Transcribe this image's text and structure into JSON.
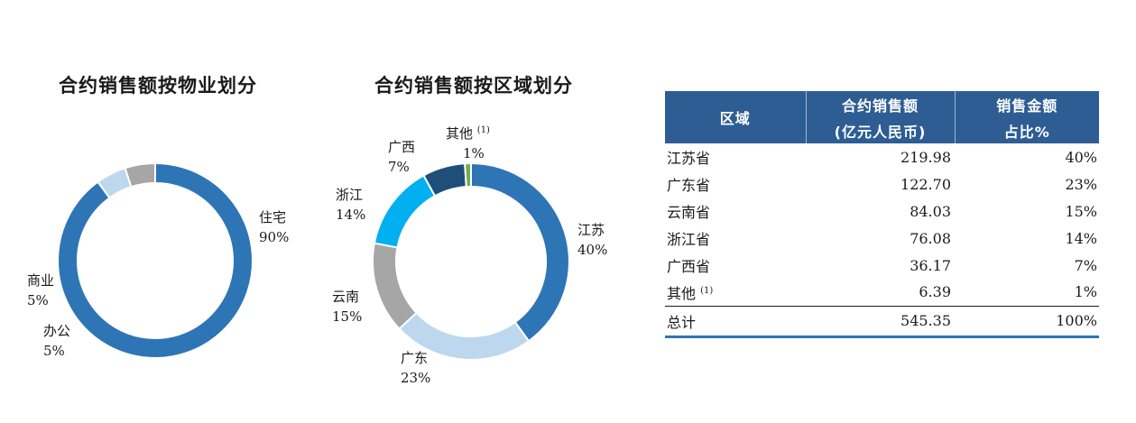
{
  "titles": {
    "property": "合约销售额按物业划分",
    "region": "合约销售额按区域划分"
  },
  "chart_data": [
    {
      "type": "pie",
      "title": "合约销售额按物业划分",
      "categories": [
        "住宅",
        "办公",
        "商业"
      ],
      "values": [
        90,
        5,
        5
      ],
      "labels": [
        "90%",
        "5%",
        "5%"
      ],
      "colors": [
        "#2e75b6",
        "#bdd7ee",
        "#a6a6a6"
      ]
    },
    {
      "type": "pie",
      "title": "合约销售额按区域划分",
      "categories": [
        "江苏",
        "广东",
        "云南",
        "浙江",
        "广西",
        "其他"
      ],
      "values": [
        40,
        23,
        15,
        14,
        7,
        1
      ],
      "labels": [
        "40%",
        "23%",
        "15%",
        "14%",
        "7%",
        "1%"
      ],
      "colors": [
        "#2e75b6",
        "#bdd7ee",
        "#a6a6a6",
        "#00b0f0",
        "#1f4e79",
        "#70ad47"
      ],
      "footnote_mark": "(1)"
    }
  ],
  "table": {
    "headers": {
      "region": "区域",
      "amount_line1": "合约销售额",
      "amount_line2": "(亿元人民币)",
      "share_line1": "销售金额",
      "share_line2": "占比%"
    },
    "rows": [
      {
        "region": "江苏省",
        "amount": "219.98",
        "share": "40%"
      },
      {
        "region": "广东省",
        "amount": "122.70",
        "share": "23%"
      },
      {
        "region": "云南省",
        "amount": "84.03",
        "share": "15%"
      },
      {
        "region": "浙江省",
        "amount": "76.08",
        "share": "14%"
      },
      {
        "region": "广西省",
        "amount": "36.17",
        "share": "7%"
      },
      {
        "region": "其他",
        "amount": "6.39",
        "share": "1%",
        "mark": "(1)"
      }
    ],
    "total": {
      "region": "总计",
      "amount": "545.35",
      "share": "100%"
    }
  }
}
